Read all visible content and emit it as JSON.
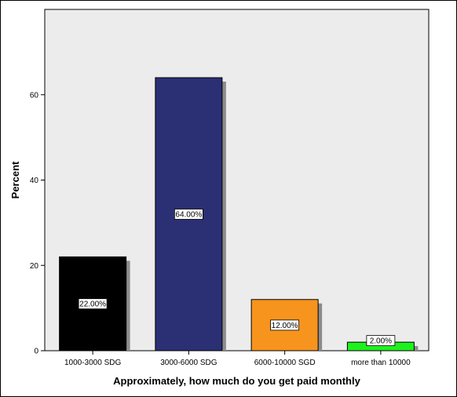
{
  "chart_data": {
    "type": "bar",
    "title": "",
    "xlabel": "Approximately, how much do you get paid monthly",
    "ylabel": "Percent",
    "categories": [
      "1000-3000 SDG",
      "3000-6000 SDG",
      "6000-10000 SGD",
      "more than 10000"
    ],
    "values": [
      22,
      64,
      12,
      2
    ],
    "data_labels": [
      "22.00%",
      "64.00%",
      "12.00%",
      "2.00%"
    ],
    "colors": [
      "#000000",
      "#2b2f74",
      "#f7941d",
      "#1ef21e"
    ],
    "yticks": [
      0,
      20,
      40,
      60
    ],
    "ylim": [
      0,
      80
    ],
    "grid": false,
    "legend": "none",
    "plot_background": "#ececec"
  }
}
